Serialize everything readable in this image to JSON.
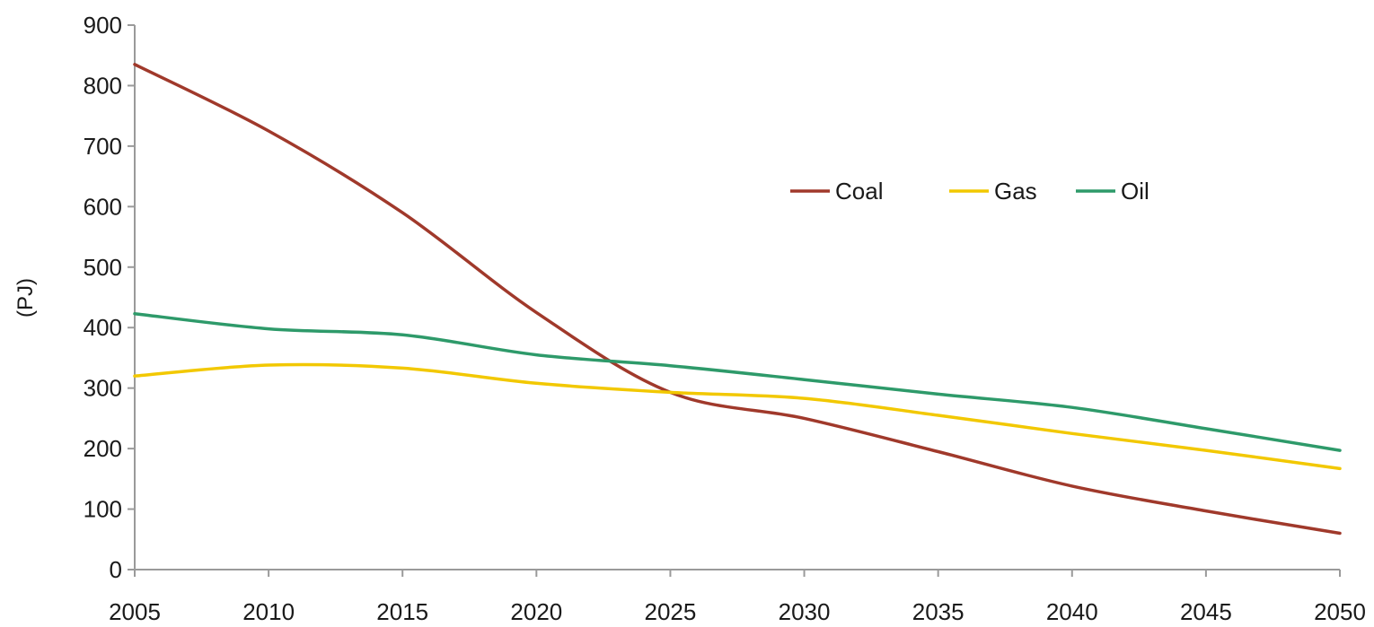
{
  "chart_data": {
    "type": "line",
    "title": "",
    "xlabel": "",
    "ylabel": "(PJ)",
    "x": [
      2005,
      2010,
      2015,
      2020,
      2025,
      2030,
      2035,
      2040,
      2045,
      2050
    ],
    "xlim": [
      2005,
      2050
    ],
    "ylim": [
      0,
      900
    ],
    "x_ticks": [
      "2005",
      "2010",
      "2015",
      "2020",
      "2025",
      "2030",
      "2035",
      "2040",
      "2045",
      "2050"
    ],
    "y_ticks": [
      "0",
      "100",
      "200",
      "300",
      "400",
      "500",
      "600",
      "700",
      "800",
      "900"
    ],
    "grid": false,
    "legend_position": "top-right",
    "series": [
      {
        "name": "Coal",
        "color": "#a0392b",
        "values": [
          835,
          725,
          590,
          425,
          293,
          250,
          195,
          138,
          97,
          60
        ]
      },
      {
        "name": "Gas",
        "color": "#f2c800",
        "values": [
          320,
          338,
          333,
          308,
          293,
          283,
          255,
          225,
          197,
          167
        ]
      },
      {
        "name": "Oil",
        "color": "#2e9a6a",
        "values": [
          423,
          398,
          388,
          355,
          337,
          314,
          290,
          268,
          233,
          197
        ]
      }
    ]
  }
}
